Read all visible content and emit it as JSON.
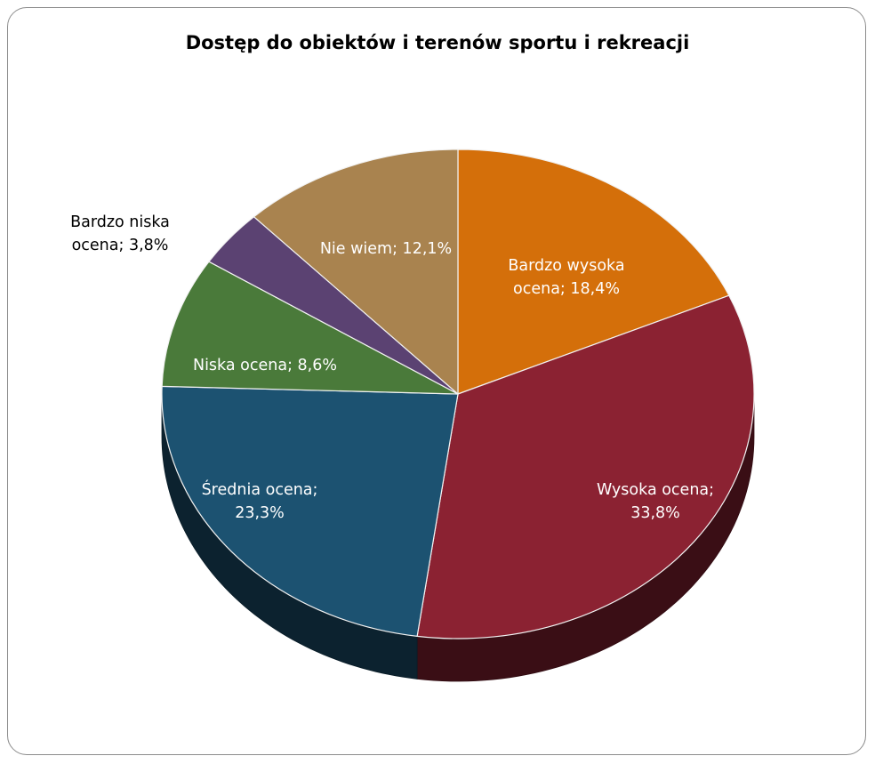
{
  "chart_data": {
    "type": "pie",
    "title": "Dostęp do obiektów i terenów sportu i rekreacji",
    "slices": [
      {
        "name": "Bardzo wysoka ocena",
        "value": 18.4,
        "label_lines": [
          "Bardzo wysoka",
          "ocena; 18,4%"
        ],
        "color": "#d46f0a",
        "label_color": "#ffffff"
      },
      {
        "name": "Wysoka ocena",
        "value": 33.8,
        "label_lines": [
          "Wysoka ocena;",
          "33,8%"
        ],
        "color": "#8b2232",
        "label_color": "#ffffff"
      },
      {
        "name": "Średnia ocena",
        "value": 23.3,
        "label_lines": [
          "Średnia ocena;",
          "23,3%"
        ],
        "color": "#1c5271",
        "label_color": "#ffffff"
      },
      {
        "name": "Niska ocena",
        "value": 8.6,
        "label_lines": [
          "Niska ocena; 8,6%"
        ],
        "color": "#4a7a3a",
        "label_color": "#ffffff"
      },
      {
        "name": "Bardzo niska ocena",
        "value": 3.8,
        "label_lines": [
          "Bardzo niska",
          "ocena; 3,8%"
        ],
        "color": "#5b4272",
        "label_color": "#000000"
      },
      {
        "name": "Nie wiem",
        "value": 12.1,
        "label_lines": [
          "Nie wiem; 12,1%"
        ],
        "color": "#a9834f",
        "label_color": "#ffffff"
      }
    ],
    "start_angle_deg": 0,
    "direction": "clockwise",
    "style": "3d-tilted",
    "legend": "none"
  }
}
